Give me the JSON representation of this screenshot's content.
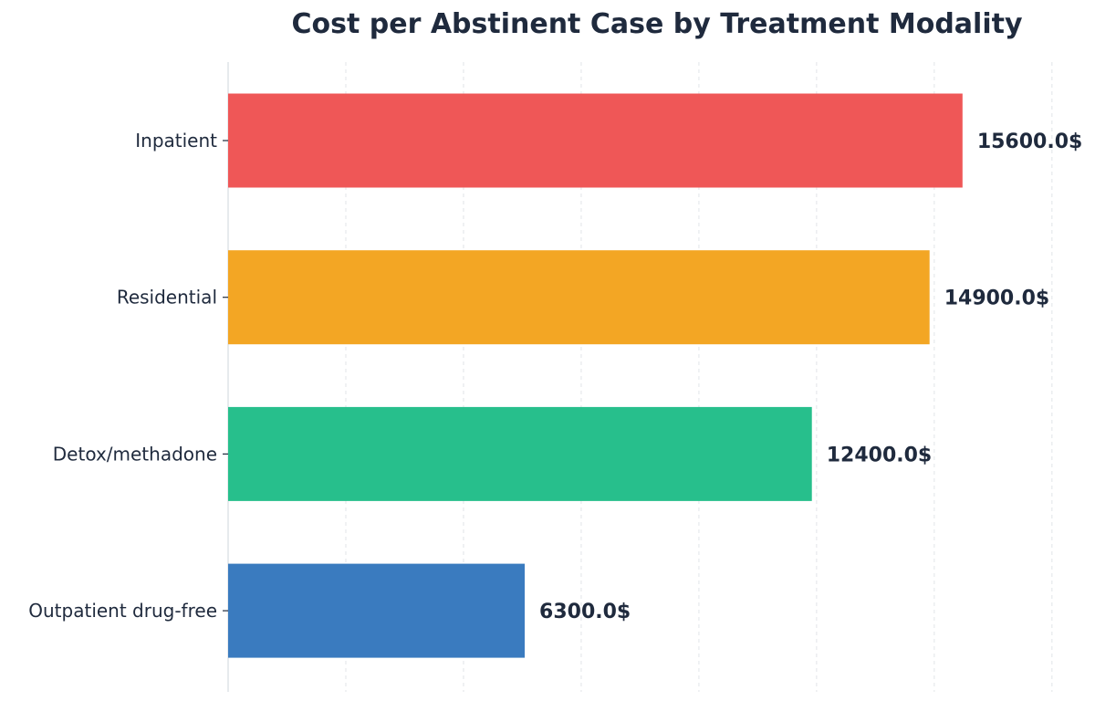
{
  "chart_data": {
    "type": "bar",
    "orientation": "horizontal",
    "title": "Cost per Abstinent Case by Treatment Modality",
    "xlabel": "",
    "ylabel": "",
    "categories": [
      "Inpatient",
      "Residential",
      "Detox/methadone",
      "Outpatient drug-free"
    ],
    "values": [
      15600.0,
      14900.0,
      12400.0,
      6300.0
    ],
    "value_labels": [
      "15600.0$",
      "14900.0$",
      "12400.0$",
      "6300.0$"
    ],
    "colors": [
      "#ef5757",
      "#f3a624",
      "#27bf8c",
      "#3a7bbf"
    ],
    "xlim": [
      0,
      17600
    ],
    "grid": true,
    "legend": "none"
  }
}
